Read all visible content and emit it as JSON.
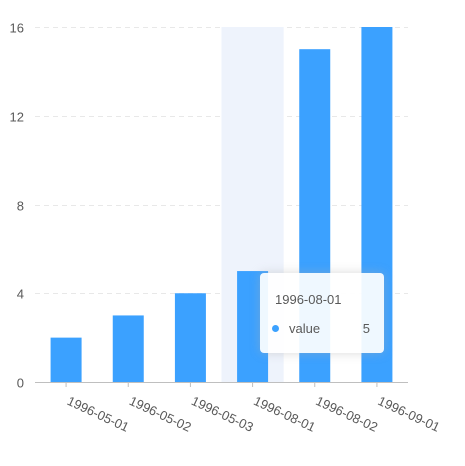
{
  "chart_data": {
    "type": "bar",
    "categories": [
      "1996-05-01",
      "1996-05-02",
      "1996-05-03",
      "1996-08-01",
      "1996-08-02",
      "1996-09-01"
    ],
    "series": [
      {
        "values": [
          2,
          3,
          4,
          5,
          15,
          16
        ]
      }
    ],
    "ylim": [
      0,
      16
    ],
    "yticks": [
      0,
      4,
      8,
      12,
      16
    ],
    "grid": true,
    "color": "#3ba1ff",
    "highlight_color": "#eef3fc",
    "highlighted_category_index": 3
  },
  "tooltip": {
    "title": "1996-08-01",
    "series_name": "value",
    "value": "5"
  }
}
